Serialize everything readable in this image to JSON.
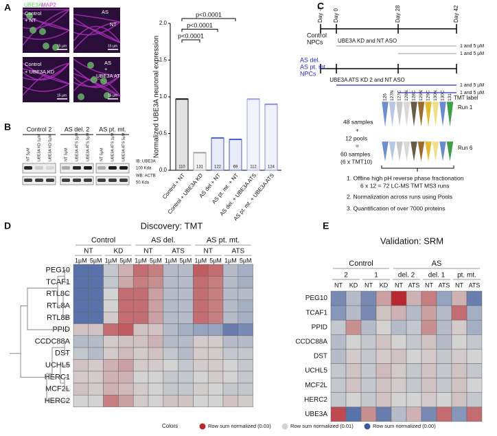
{
  "panels": {
    "a": "A",
    "b": "B",
    "c": "C",
    "d": "D",
    "e": "E"
  },
  "panel_a": {
    "stain_green": "UBE3A/",
    "stain_magenta": "MAP2",
    "images": [
      {
        "lines": [
          "Control",
          "+ NT"
        ],
        "scale": "15 µm"
      },
      {
        "lines": [
          "AS",
          "NT"
        ],
        "scale": "15 µm"
      },
      {
        "lines": [
          "Control",
          "+ UBE3A KD"
        ],
        "scale": "15 µm"
      },
      {
        "lines": [
          "AS",
          "+",
          "UBE3A ATS"
        ],
        "scale": "15 µm"
      }
    ]
  },
  "blot": {
    "groups": [
      {
        "name": "Control 2",
        "lanes": [
          "NT 5µM",
          "UBE3A KD 1µM",
          "UBE3A KD 5µM"
        ]
      },
      {
        "name": "AS del. 2",
        "lanes": [
          "NT 5µM",
          "UBE3A ATS 1µM",
          "UBE3A ATS 5µM"
        ]
      },
      {
        "name": "AS pt. mt.",
        "lanes": [
          "NT 5µM",
          "UBE3A ATS 1µM",
          "UBE3A ATS 5µM"
        ]
      }
    ],
    "labels": [
      "IB: UBE3A",
      "100 Kda",
      "WB: ACTB",
      "50 Kda"
    ]
  },
  "chart_data": {
    "type": "bar",
    "y_label": "Normalized UBE3A neuronal expression",
    "categories": [
      "Control + NT",
      "Control + UBE3A KD",
      "AS del + NT",
      "AS pt. mt. + NT",
      "AS del. + UBE3A ATS",
      "AS pt. mt. + UBE3A ATS"
    ],
    "values": [
      0.97,
      0.24,
      0.44,
      0.42,
      0.97,
      0.9
    ],
    "colors": [
      "#111111",
      "#a0a0a0",
      "#4a5fc8",
      "#4a5fc8",
      "#9c9cf0",
      "#8888e0"
    ],
    "counts": [
      "110",
      "131",
      "122",
      "69",
      "112",
      "124"
    ],
    "ylim": [
      0,
      2
    ],
    "yticks": [
      {
        "value": 0,
        "label": "0.0"
      },
      {
        "value": 0.5,
        "label": "0.5"
      },
      {
        "value": 1,
        "label": "1.0"
      },
      {
        "value": 1.5,
        "label": "1.5"
      },
      {
        "value": 2,
        "label": "2.0"
      }
    ],
    "annotations": [
      "p<0.0001",
      "p<0.0001",
      "p<0.0001"
    ]
  },
  "panel_c": {
    "days": [
      "Day -7",
      "Day 0",
      "Day 28",
      "Day 42"
    ],
    "control": [
      "Control",
      "NPCs"
    ],
    "control_treatment": "UBE3A KD and NT ASO",
    "as": [
      "AS del.",
      "AS pt. mt.",
      "NPCs"
    ],
    "as_treatment": "UBE3A ATS KD 2  and NT ASO",
    "doses": [
      "1 and 5 µM",
      "1 and 5 µM",
      "1 and 5 µM",
      "1 and 5 µM"
    ],
    "tmt_channels": [
      "126",
      "127N",
      "127C",
      "128N",
      "128C",
      "129N",
      "129C",
      "130N",
      "130C",
      "131"
    ],
    "tmt_colors": [
      "#6d8fcf",
      "#b7c6e2",
      "#c9c9c9",
      "#d8d8d8",
      "#6a5a48",
      "#9a6b2f",
      "#e3b92e",
      "#f0df8a",
      "#6a8bd0",
      "#3c9e46"
    ],
    "tmt_label": "TMT label",
    "runs": [
      "Run 1",
      "Run 6"
    ],
    "samples": [
      "48 samples",
      "+",
      "12 pools",
      "=",
      "60 samples",
      "(6 x TMT10)"
    ],
    "steps": [
      "1. Offline high pH reverse phase fractionation",
      "6 x 12 = 72 LC-MS TMT MS3 runs",
      "2. Normalization across runs using Pools",
      "3. Quantification of over 7000 proteins"
    ]
  },
  "heatmap_d": {
    "title": "Discovery: TMT",
    "groups": [
      {
        "name": "Control",
        "subgroups": [
          {
            "name": "NT",
            "columns": [
              "1µM",
              "5µM"
            ]
          },
          {
            "name": "KD",
            "columns": [
              "1µM",
              "5µM"
            ]
          }
        ]
      },
      {
        "name": "AS del.",
        "subgroups": [
          {
            "name": "NT",
            "columns": [
              "1µM",
              "5µM"
            ]
          },
          {
            "name": "ATS",
            "columns": [
              "1µM",
              "5µM"
            ]
          }
        ]
      },
      {
        "name": "AS pt. mt.",
        "subgroups": [
          {
            "name": "NT",
            "columns": [
              "1µM",
              "5µM"
            ]
          },
          {
            "name": "ATS",
            "columns": [
              "1µM",
              "5µM"
            ]
          }
        ]
      }
    ],
    "rows": [
      {
        "name": "PEG10",
        "values": [
          0.002,
          0.002,
          0.009,
          0.014,
          0.022,
          0.02,
          0.008,
          0.008,
          0.024,
          0.022,
          0.008,
          0.007
        ]
      },
      {
        "name": "TCAF1",
        "values": [
          0.002,
          0.002,
          0.009,
          0.015,
          0.02,
          0.018,
          0.008,
          0.008,
          0.022,
          0.02,
          0.008,
          0.007
        ]
      },
      {
        "name": "RTL8C",
        "values": [
          0.002,
          0.002,
          0.01,
          0.022,
          0.022,
          0.016,
          0.008,
          0.008,
          0.022,
          0.02,
          0.008,
          0.008
        ]
      },
      {
        "name": "RTL8A",
        "values": [
          0.002,
          0.002,
          0.01,
          0.022,
          0.022,
          0.016,
          0.008,
          0.008,
          0.022,
          0.02,
          0.008,
          0.007
        ]
      },
      {
        "name": "RTL8B",
        "values": [
          0.002,
          0.002,
          0.011,
          0.022,
          0.022,
          0.016,
          0.008,
          0.008,
          0.022,
          0.02,
          0.008,
          0.007
        ]
      },
      {
        "name": "PPID",
        "values": [
          0.012,
          0.012,
          0.022,
          0.024,
          0.012,
          0.012,
          0.008,
          0.007,
          0.006,
          0.006,
          0.003,
          0.004
        ]
      },
      {
        "name": "CCDC88A",
        "values": [
          0.008,
          0.008,
          0.011,
          0.012,
          0.012,
          0.014,
          0.008,
          0.008,
          0.011,
          0.011,
          0.008,
          0.008
        ]
      },
      {
        "name": "DST",
        "values": [
          0.009,
          0.008,
          0.011,
          0.013,
          0.011,
          0.012,
          0.009,
          0.008,
          0.011,
          0.011,
          0.009,
          0.009
        ]
      },
      {
        "name": "UCHL5",
        "values": [
          0.012,
          0.011,
          0.014,
          0.016,
          0.011,
          0.011,
          0.01,
          0.009,
          0.011,
          0.011,
          0.01,
          0.009
        ]
      },
      {
        "name": "HERC1",
        "values": [
          0.011,
          0.011,
          0.014,
          0.014,
          0.01,
          0.01,
          0.009,
          0.009,
          0.01,
          0.011,
          0.01,
          0.009
        ]
      },
      {
        "name": "MCF2L",
        "values": [
          0.012,
          0.011,
          0.014,
          0.013,
          0.011,
          0.01,
          0.009,
          0.009,
          0.011,
          0.01,
          0.009,
          0.009
        ]
      },
      {
        "name": "HERC2",
        "values": [
          0.01,
          0.01,
          0.02,
          0.016,
          0.011,
          0.01,
          0.012,
          0.012,
          0.01,
          0.01,
          0.012,
          0.011
        ]
      }
    ]
  },
  "heatmap_e": {
    "title": "Validation: SRM",
    "groups": [
      {
        "name": "Control",
        "subgroups": [
          {
            "name": "2",
            "columns": [
              "NT",
              "KD"
            ]
          },
          {
            "name": "1",
            "columns": [
              "NT",
              "KD"
            ]
          }
        ]
      },
      {
        "name": "AS",
        "subgroups": [
          {
            "name": "del. 2",
            "columns": [
              "NT",
              "ATS"
            ]
          },
          {
            "name": "del. 1",
            "columns": [
              "NT",
              "ATS"
            ]
          },
          {
            "name": "pt. mt.",
            "columns": [
              "NT",
              "ATS"
            ]
          }
        ]
      }
    ],
    "rows": [
      {
        "name": "PEG10",
        "values": [
          0.004,
          0.008,
          0.004,
          0.016,
          0.03,
          0.014,
          0.02,
          0.006,
          0.014,
          0.003
        ]
      },
      {
        "name": "TCAF1",
        "values": [
          0.005,
          0.008,
          0.004,
          0.012,
          0.014,
          0.008,
          0.016,
          0.008,
          0.022,
          0.007
        ]
      },
      {
        "name": "PPID",
        "values": [
          0.009,
          0.018,
          0.008,
          0.01,
          0.008,
          0.009,
          0.018,
          0.008,
          0.011,
          0.007
        ]
      },
      {
        "name": "CCDC88A",
        "values": [
          0.008,
          0.01,
          0.009,
          0.012,
          0.01,
          0.009,
          0.012,
          0.008,
          0.01,
          0.009
        ]
      },
      {
        "name": "DST",
        "values": [
          0.008,
          0.011,
          0.009,
          0.011,
          0.012,
          0.01,
          0.011,
          0.009,
          0.011,
          0.01
        ]
      },
      {
        "name": "UCHL5",
        "values": [
          0.009,
          0.012,
          0.009,
          0.013,
          0.011,
          0.009,
          0.012,
          0.009,
          0.012,
          0.009
        ]
      },
      {
        "name": "MCF2L",
        "values": [
          0.009,
          0.012,
          0.009,
          0.012,
          0.011,
          0.009,
          0.012,
          0.009,
          0.012,
          0.01
        ]
      },
      {
        "name": "HERC2",
        "values": [
          0.009,
          0.01,
          0.009,
          0.012,
          0.01,
          0.01,
          0.011,
          0.01,
          0.012,
          0.009
        ]
      },
      {
        "name": "UBE3A",
        "values": [
          0.026,
          0.002,
          0.018,
          0.003,
          0.008,
          0.014,
          0.004,
          0.022,
          0.005,
          0.022
        ]
      }
    ]
  },
  "color_legend": {
    "title": "Colors",
    "entries": [
      {
        "value": 0.03,
        "label": "Row sum normalized (0.03)",
        "color": "#b8282f"
      },
      {
        "value": 0.01,
        "label": "Row sum normalized (0.01)",
        "color": "#d3d3d3"
      },
      {
        "value": 0.0,
        "label": "Row sum normalized (0.00)",
        "color": "#3b5a9e"
      }
    ]
  }
}
